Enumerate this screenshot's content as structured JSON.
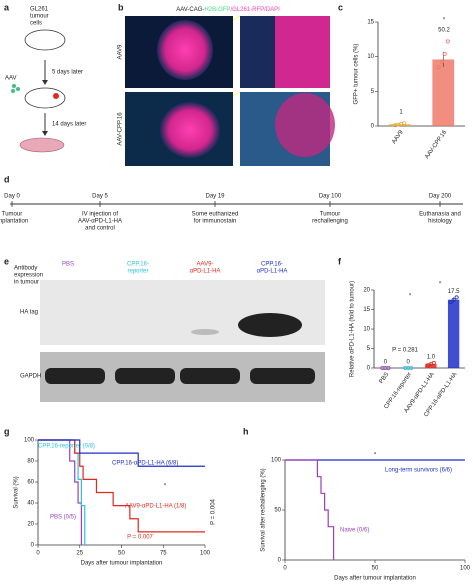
{
  "panel_labels": [
    "a",
    "b",
    "c",
    "d",
    "e",
    "f",
    "g",
    "h"
  ],
  "a": {
    "cells": [
      "GL261",
      "tumour",
      "cells"
    ],
    "aav": "AAV",
    "step1": "5 days later",
    "step2": "14 days later"
  },
  "b": {
    "title_parts": [
      "AAV-CAG-",
      "H2B-GFP",
      "/GL261-RFP/DAPI"
    ],
    "rows": [
      "AAV9",
      "AAV-CPP.16"
    ]
  },
  "d": {
    "days": [
      "Day 0",
      "Day 5",
      "Day 19",
      "Day 100",
      "Day 200"
    ],
    "events": [
      [
        "Tumour",
        "implantation"
      ],
      [
        "IV injection of",
        "AAV-αPD-L1-HA",
        "and control"
      ],
      [
        "Some euthanized",
        "for immunostain"
      ],
      [
        "Tumour",
        "rechallenging"
      ],
      [
        "Euthanasia and",
        "histology"
      ]
    ]
  },
  "e": {
    "header": [
      "Antibody",
      "expression",
      "in tumour"
    ],
    "lanes": [
      [
        "PBS"
      ],
      [
        "CPP.16-",
        "reporter"
      ],
      [
        "AAV9-",
        "αPD-L1-HA"
      ],
      [
        "CPP.16-",
        "αPD-L1-HA"
      ]
    ],
    "lane_colors": [
      "#9b3fbf",
      "#29c4e0",
      "#e0281e",
      "#1f2fc8"
    ],
    "bands": [
      "HA tag",
      "GAPDH"
    ]
  },
  "chart_data": [
    {
      "type": "bar",
      "ylabel": "GFP+ tumour cells (%)",
      "categories": [
        "AAV9",
        "AAV-CPP.16"
      ],
      "values": [
        0.25,
        9.6
      ],
      "errors": [
        0.1,
        1.1
      ],
      "points": [
        [
          0.1,
          0.2,
          0.3,
          0.4
        ],
        [
          8.5,
          9.3,
          10.4,
          12.2
        ]
      ],
      "colors": [
        "#e0a83a",
        "#f07a6a"
      ],
      "annotations": [
        "1",
        "50.2",
        "*"
      ],
      "ylim": [
        0,
        15
      ],
      "yticks": [
        0,
        5,
        10,
        15
      ]
    },
    {
      "type": "bar",
      "ylabel": "Relative αPD-L1-HA (fold to tumour)",
      "categories": [
        "PBS",
        "CPP.16-reporter",
        "AAV9-αPD-L1-HA",
        "CPP.16-αPD-L1-HA"
      ],
      "values": [
        0,
        0,
        1.0,
        17.5
      ],
      "value_labels": [
        "0",
        "0",
        "1.0",
        "17.5"
      ],
      "errors": [
        0,
        0,
        0.3,
        0.6
      ],
      "points": [
        [
          0,
          0,
          0
        ],
        [
          0,
          0,
          0
        ],
        [
          0.7,
          1.0,
          1.3
        ],
        [
          16.9,
          17.5,
          18.1
        ]
      ],
      "colors": [
        "#9b3fbf",
        "#29c4e0",
        "#e0281e",
        "#1f2fc8"
      ],
      "annotations": [
        "P = 0.281",
        "*",
        "*"
      ],
      "ylim": [
        0,
        20
      ],
      "yticks": [
        0,
        5,
        10,
        15,
        20
      ]
    },
    {
      "type": "step",
      "xlabel": "Days after tumour implantation",
      "ylabel": "Survival (%)",
      "series": [
        {
          "name": "PBS (0/5)",
          "color": "#9b3fbf",
          "x": [
            0,
            19,
            19,
            22,
            22,
            24,
            24,
            26,
            26
          ],
          "values": [
            100,
            100,
            80,
            80,
            60,
            60,
            40,
            40,
            0
          ]
        },
        {
          "name": "CPP.16-reporter (0/8)",
          "color": "#29c4e0",
          "x": [
            0,
            22,
            22,
            24,
            24,
            26,
            26,
            28,
            28
          ],
          "values": [
            100,
            100,
            87.5,
            87.5,
            62.5,
            62.5,
            37.5,
            37.5,
            0
          ]
        },
        {
          "name": "AAV9-αPD-L1-HA (1/8)",
          "color": "#e0281e",
          "x": [
            0,
            22,
            22,
            25,
            25,
            27,
            27,
            35,
            35,
            45,
            45,
            55,
            55,
            60,
            60,
            100
          ],
          "values": [
            100,
            100,
            87.5,
            87.5,
            75,
            75,
            62.5,
            62.5,
            50,
            50,
            37.5,
            37.5,
            25,
            25,
            12.5,
            12.5
          ]
        },
        {
          "name": "CPP.16-αPD-L1-HA (6/8)",
          "color": "#1f2fc8",
          "x": [
            0,
            25,
            25,
            60,
            60,
            100
          ],
          "values": [
            100,
            100,
            87.5,
            87.5,
            75,
            75
          ]
        }
      ],
      "annotations": [
        "P = 0.007",
        "P = 0.004",
        "*"
      ],
      "xlim": [
        0,
        100
      ],
      "xticks": [
        0,
        25,
        50,
        75,
        100
      ],
      "ylim": [
        0,
        100
      ],
      "yticks": [
        0,
        20,
        40,
        60,
        80,
        100
      ]
    },
    {
      "type": "step",
      "xlabel": "Days after tumour implantation",
      "ylabel": "Survival after rechallenging (%)",
      "series": [
        {
          "name": "Long-term survivors (6/6)",
          "color": "#1f2fc8",
          "x": [
            0,
            100
          ],
          "values": [
            100,
            100
          ]
        },
        {
          "name": "Naive (0/6)",
          "color": "#9b3fbf",
          "x": [
            0,
            18,
            18,
            20,
            20,
            22,
            22,
            24,
            24,
            27,
            27
          ],
          "values": [
            100,
            100,
            83.3,
            83.3,
            66.7,
            66.7,
            50,
            50,
            33.3,
            33.3,
            0
          ]
        }
      ],
      "annotations": [
        "*"
      ],
      "xlim": [
        0,
        100
      ],
      "xticks": [
        0,
        50,
        100
      ],
      "ylim": [
        0,
        100
      ],
      "yticks": [
        0,
        50,
        100
      ]
    }
  ]
}
